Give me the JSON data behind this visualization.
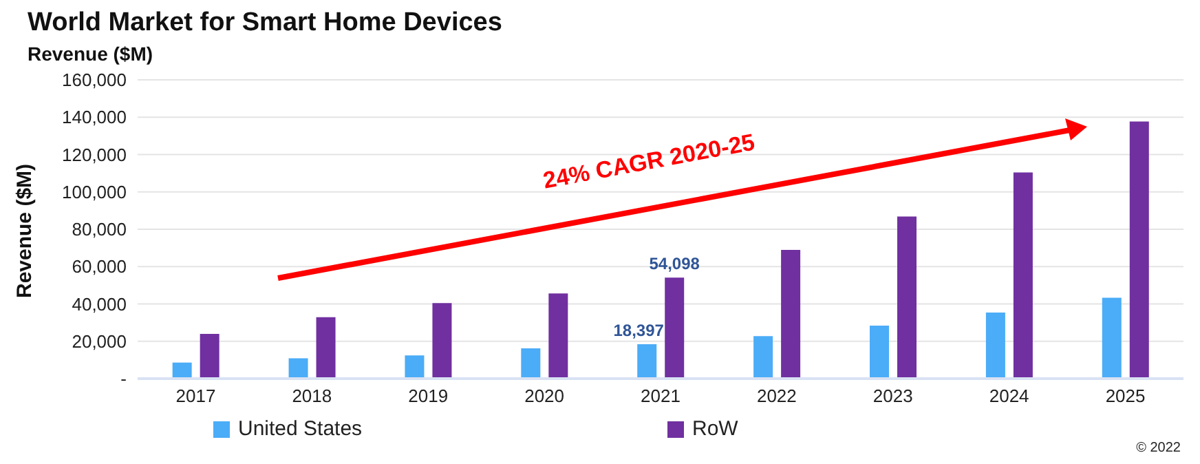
{
  "chart_data": {
    "type": "bar",
    "title": "World Market for Smart Home Devices",
    "subtitle": "Revenue ($M)",
    "ylabel": "Revenue ($M)",
    "categories": [
      "2017",
      "2018",
      "2019",
      "2020",
      "2021",
      "2022",
      "2023",
      "2024",
      "2025"
    ],
    "series": [
      {
        "name": "United States",
        "color": "#4bacf7",
        "values": [
          8600,
          10900,
          12400,
          16200,
          18397,
          22800,
          28400,
          35400,
          43300
        ],
        "value_labels": [
          null,
          null,
          null,
          null,
          "18,397",
          null,
          null,
          null,
          null
        ]
      },
      {
        "name": "RoW",
        "color": "#7030a0",
        "values": [
          24000,
          32900,
          40500,
          45600,
          54098,
          68900,
          86800,
          110400,
          137700
        ],
        "value_labels": [
          null,
          null,
          null,
          null,
          "54,098",
          null,
          null,
          null,
          null
        ]
      }
    ],
    "ylim": [
      0,
      160000
    ],
    "yticks": [
      {
        "value": 0,
        "label": "-"
      },
      {
        "value": 20000,
        "label": "20,000"
      },
      {
        "value": 40000,
        "label": "40,000"
      },
      {
        "value": 60000,
        "label": "60,000"
      },
      {
        "value": 80000,
        "label": "80,000"
      },
      {
        "value": 100000,
        "label": "100,000"
      },
      {
        "value": 120000,
        "label": "120,000"
      },
      {
        "value": 140000,
        "label": "140,000"
      },
      {
        "value": 160000,
        "label": "160,000"
      }
    ],
    "grid": "y",
    "legend": "bottom",
    "annotations": [
      "24% CAGR 2020-25",
      "© 2022"
    ]
  }
}
